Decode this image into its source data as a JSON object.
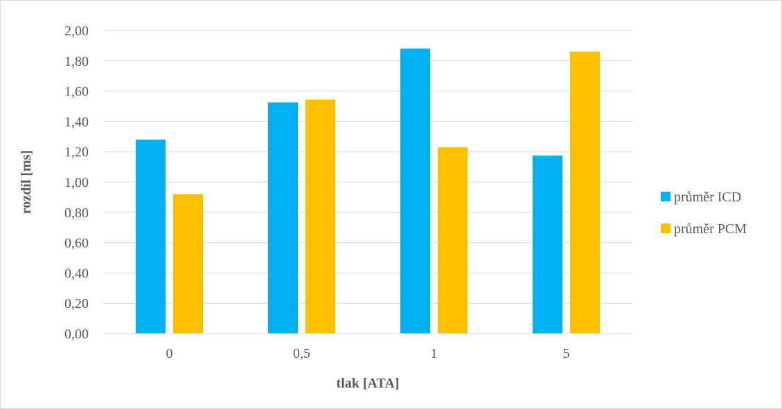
{
  "chart_data": {
    "type": "bar",
    "categories": [
      "0",
      "0,5",
      "1",
      "5"
    ],
    "series": [
      {
        "name": "průměr ICD",
        "color": "#00B0F0",
        "values": [
          1.28,
          1.525,
          1.88,
          1.175
        ]
      },
      {
        "name": "průměr PCM",
        "color": "#FFC000",
        "values": [
          0.92,
          1.545,
          1.23,
          1.86
        ]
      }
    ],
    "title": "",
    "xlabel": "tlak [ATA]",
    "ylabel": "rozdíl [ms]",
    "ylim": [
      0,
      2
    ],
    "yticks": [
      "0,00",
      "0,20",
      "0,40",
      "0,60",
      "0,80",
      "1,00",
      "1,20",
      "1,40",
      "1,60",
      "1,80",
      "2,00"
    ],
    "grid": true,
    "legend": "right"
  }
}
